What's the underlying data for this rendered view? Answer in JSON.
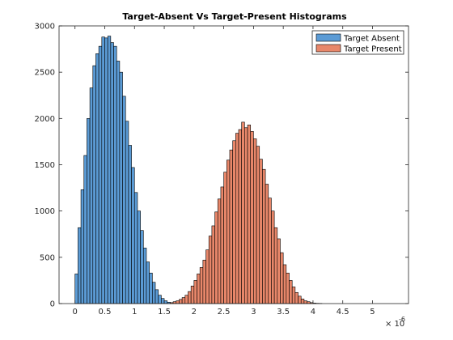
{
  "chart_data": {
    "type": "bar",
    "title": "Target-Absent Vs Target-Present Histograms",
    "xlabel": "",
    "ylabel": "",
    "x_multiplier_label": "× 10",
    "x_multiplier_exponent": "-6",
    "xlim": [
      -2.68e-07,
      5.605e-06
    ],
    "ylim": [
      0,
      3000
    ],
    "bin_width": 5e-08,
    "grid": false,
    "legend_position": "top-right",
    "xticks": [
      {
        "value": 0,
        "label": "0"
      },
      {
        "value": 5e-07,
        "label": "0.5"
      },
      {
        "value": 1e-06,
        "label": "1"
      },
      {
        "value": 1.5e-06,
        "label": "1.5"
      },
      {
        "value": 2e-06,
        "label": "2"
      },
      {
        "value": 2.5e-06,
        "label": "2.5"
      },
      {
        "value": 3e-06,
        "label": "3"
      },
      {
        "value": 3.5e-06,
        "label": "3.5"
      },
      {
        "value": 4e-06,
        "label": "4"
      },
      {
        "value": 4.5e-06,
        "label": "4.5"
      },
      {
        "value": 5e-06,
        "label": "5"
      }
    ],
    "yticks": [
      {
        "value": 0,
        "label": "0"
      },
      {
        "value": 500,
        "label": "500"
      },
      {
        "value": 1000,
        "label": "1000"
      },
      {
        "value": 1500,
        "label": "1500"
      },
      {
        "value": 2000,
        "label": "2000"
      },
      {
        "value": 2500,
        "label": "2500"
      },
      {
        "value": 3000,
        "label": "3000"
      }
    ],
    "series": [
      {
        "name": "Target Absent",
        "color": "#5b9bd5",
        "bin_start": 0.0,
        "values": [
          320,
          820,
          1230,
          1600,
          2000,
          2330,
          2570,
          2700,
          2780,
          2880,
          2870,
          2890,
          2820,
          2780,
          2620,
          2500,
          2240,
          1970,
          1710,
          1470,
          1200,
          1000,
          790,
          600,
          450,
          330,
          230,
          150,
          90,
          55,
          30,
          15,
          8,
          4,
          2
        ]
      },
      {
        "name": "Target Present",
        "color": "#e8876a",
        "bin_start": 1.6e-06,
        "values": [
          10,
          20,
          30,
          45,
          65,
          90,
          130,
          190,
          250,
          320,
          390,
          470,
          580,
          730,
          840,
          990,
          1130,
          1260,
          1420,
          1550,
          1660,
          1760,
          1840,
          1880,
          1960,
          1900,
          1930,
          1860,
          1780,
          1700,
          1560,
          1450,
          1290,
          1140,
          1000,
          820,
          700,
          550,
          420,
          330,
          250,
          180,
          120,
          80,
          50,
          30,
          20,
          10,
          5,
          3,
          2
        ]
      }
    ]
  }
}
